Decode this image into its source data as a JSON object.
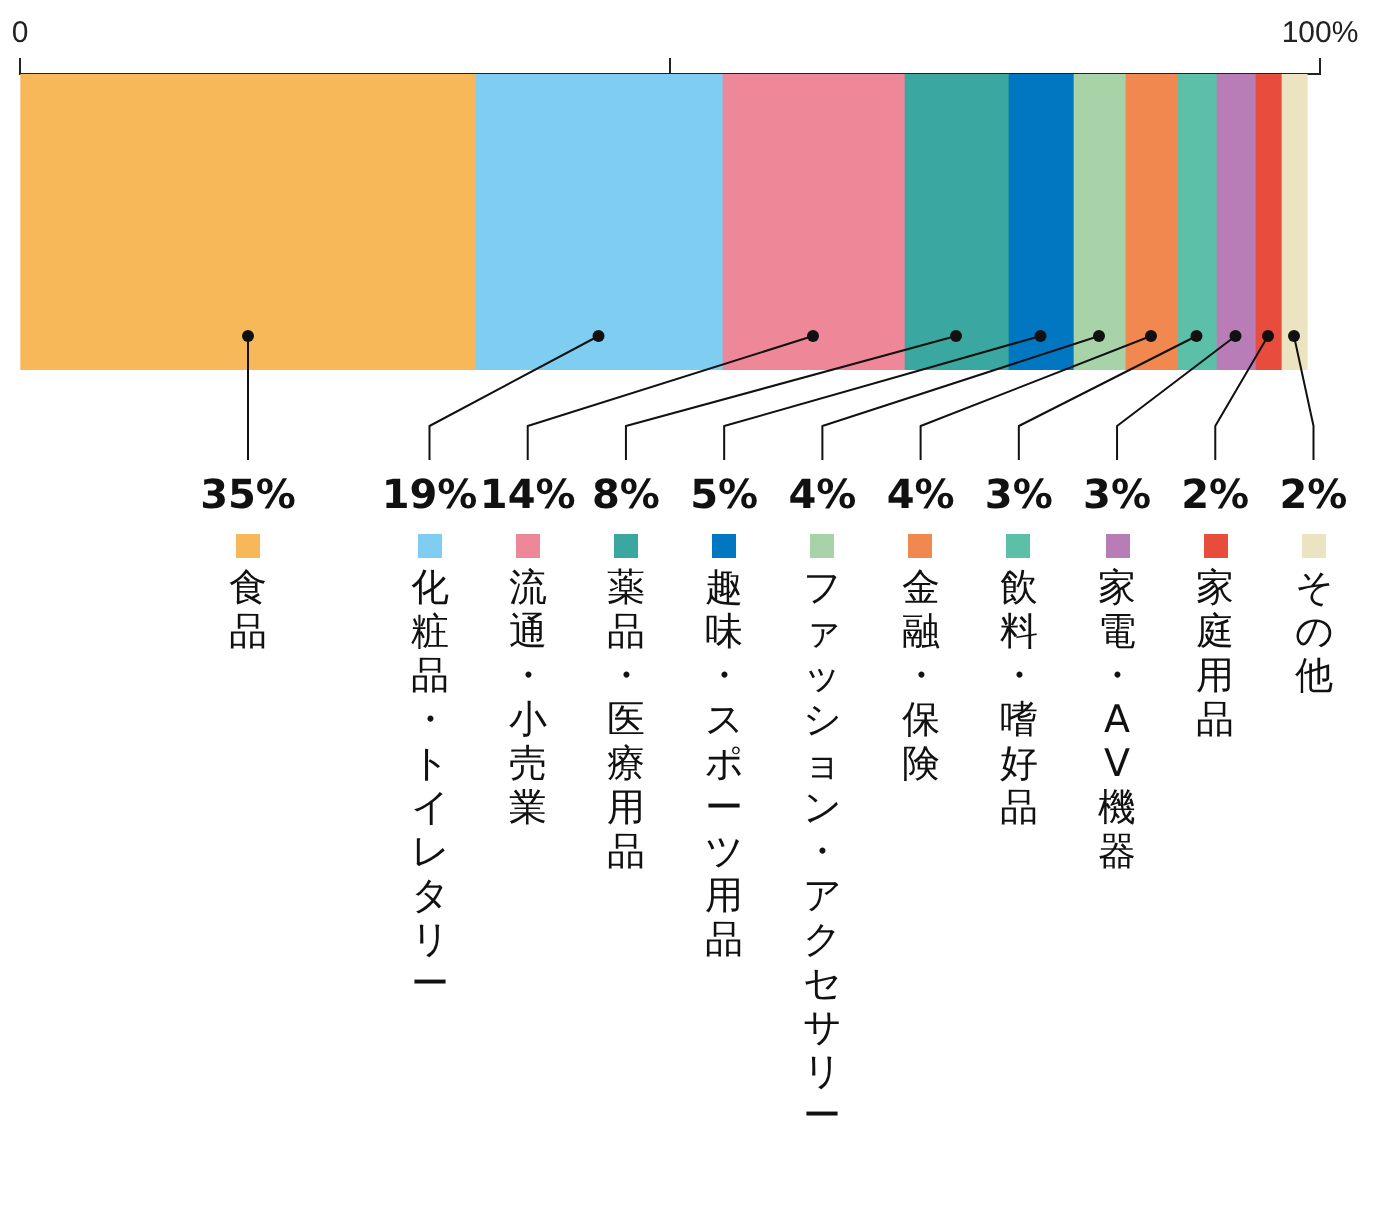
{
  "chart_data": {
    "type": "bar",
    "orientation": "horizontal",
    "stacked": true,
    "categories": [
      null
    ],
    "legend": "bottom",
    "xlim": [
      0,
      100
    ],
    "xticks": [
      0,
      {
        "value": 50,
        "label": null
      },
      {
        "value": 100,
        "label": "100%"
      }
    ],
    "series": [
      {
        "name": "食品",
        "color": "#f7b85a",
        "values": [
          35
        ],
        "value_labels": [
          "35%"
        ]
      },
      {
        "name": "化粧品・トイレタリー",
        "color": "#80cdf2",
        "values": [
          19
        ],
        "value_labels": [
          "19%"
        ]
      },
      {
        "name": "流通・小売業",
        "color": "#ee8899",
        "values": [
          14
        ],
        "value_labels": [
          "14%"
        ]
      },
      {
        "name": "薬品・医療用品",
        "color": "#3aa8a0",
        "values": [
          8
        ],
        "value_labels": [
          "8%"
        ]
      },
      {
        "name": "趣味・スポーツ用品",
        "color": "#0077c0",
        "values": [
          5
        ],
        "value_labels": [
          "5%"
        ]
      },
      {
        "name": "ファッション・アクセサリー",
        "color": "#a8d2a8",
        "values": [
          4
        ],
        "value_labels": [
          "4%"
        ]
      },
      {
        "name": "金融・保険",
        "color": "#f08850",
        "values": [
          4
        ],
        "value_labels": [
          "4%"
        ]
      },
      {
        "name": "飲料・嗜好品",
        "color": "#5cc0a8",
        "values": [
          3
        ],
        "value_labels": [
          "3%"
        ]
      },
      {
        "name": "家電・AV機器",
        "color": "#b87db6",
        "values": [
          3
        ],
        "value_labels": [
          "3%"
        ]
      },
      {
        "name": "家庭用品",
        "color": "#e84c3c",
        "values": [
          2
        ],
        "value_labels": [
          "2%"
        ]
      },
      {
        "name": "その他",
        "color": "#ece4c0",
        "values": [
          2
        ],
        "value_labels": [
          "2%"
        ]
      }
    ]
  }
}
